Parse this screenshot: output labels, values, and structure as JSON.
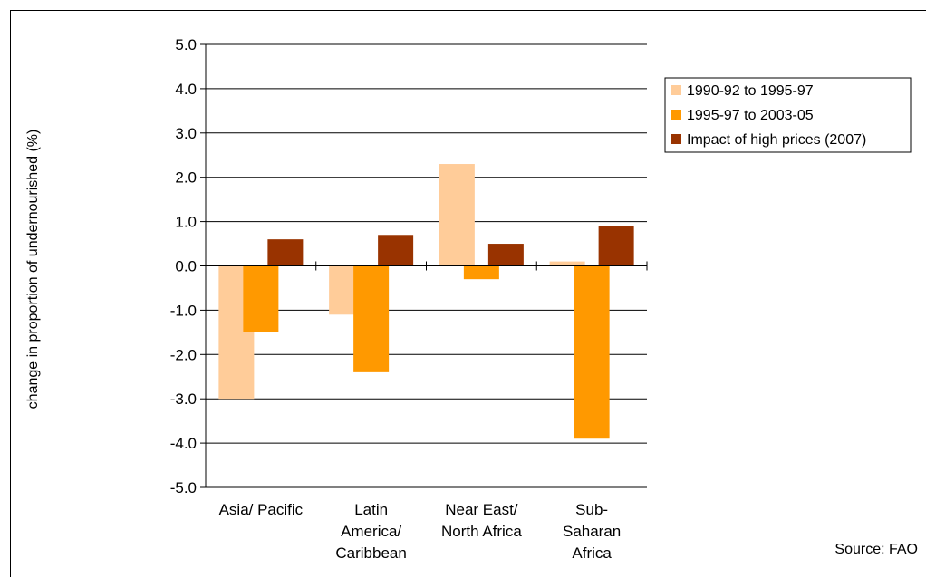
{
  "chart_data": {
    "type": "bar",
    "ylabel": "change in proportion of undernourished (%)",
    "xlabel": "",
    "ylim": [
      -5.0,
      5.0
    ],
    "yticks": [
      "5.0",
      "4.0",
      "3.0",
      "2.0",
      "1.0",
      "0.0",
      "-1.0",
      "-2.0",
      "-3.0",
      "-4.0",
      "-5.0"
    ],
    "categories": [
      [
        "Asia/ Pacific"
      ],
      [
        "Latin",
        "America/",
        "Caribbean"
      ],
      [
        "Near East/",
        "North Africa"
      ],
      [
        "Sub-",
        "Saharan",
        "Africa"
      ]
    ],
    "series": [
      {
        "name": "1990-92 to 1995-97",
        "color": "#FFCC99",
        "values": [
          -3.0,
          -1.1,
          2.3,
          0.1
        ]
      },
      {
        "name": "1995-97 to 2003-05",
        "color": "#FF9900",
        "values": [
          -1.5,
          -2.4,
          -0.3,
          -3.9
        ]
      },
      {
        "name": "Impact of high prices (2007)",
        "color": "#993300",
        "values": [
          0.6,
          0.7,
          0.5,
          0.9
        ]
      }
    ],
    "grid": true,
    "legend_position": "right",
    "source": "Source: FAO"
  }
}
